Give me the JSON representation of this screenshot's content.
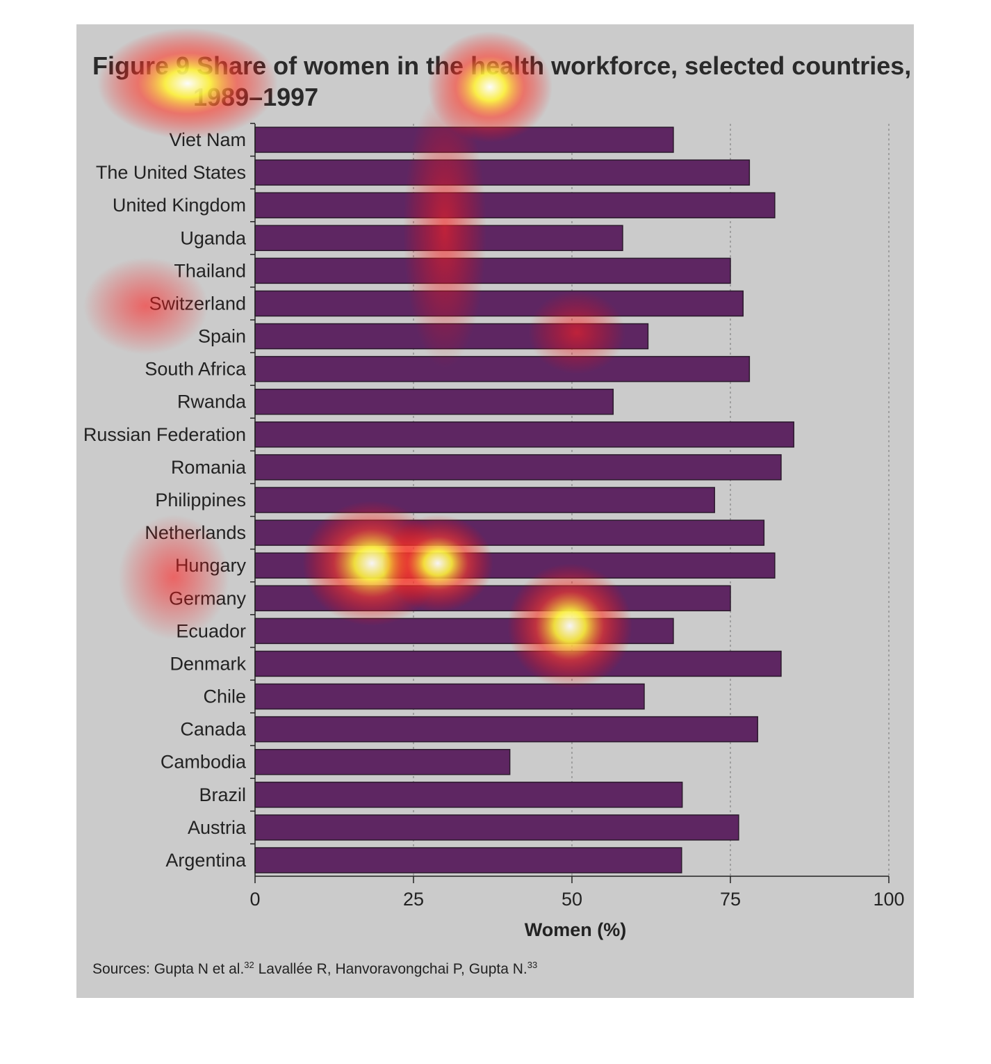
{
  "chart_data": {
    "type": "bar",
    "orientation": "horizontal",
    "title": "Figure 9  Share of women in the health workforce, selected countries,",
    "title_line2": "1989–1997",
    "categories": [
      "Viet Nam",
      "The United States",
      "United Kingdom",
      "Uganda",
      "Thailand",
      "Switzerland",
      "Spain",
      "South Africa",
      "Rwanda",
      "Russian Federation",
      "Romania",
      "Philippines",
      "Netherlands",
      "Hungary",
      "Germany",
      "Ecuador",
      "Denmark",
      "Chile",
      "Canada",
      "Cambodia",
      "Brazil",
      "Austria",
      "Argentina"
    ],
    "values": [
      66,
      78,
      82,
      58,
      75,
      77,
      62,
      78,
      56.5,
      85,
      83,
      72.5,
      80.3,
      82,
      75,
      66,
      83,
      61.4,
      79.3,
      40.2,
      67.4,
      76.3,
      67.3
    ],
    "xlabel": "Women (%)",
    "ylabel": "",
    "xlim": [
      0,
      100
    ],
    "xticks": [
      "0",
      "25",
      "50",
      "75",
      "100"
    ],
    "grid": "vertical dotted",
    "source": "Sources: Gupta N et al.",
    "source_sup1": "32",
    "source_rest": " Lavallée R, Hanvoravongchai P, Gupta N.",
    "source_sup2": "33",
    "colors": {
      "bar": "#5e2662",
      "bar_border": "#2b1a2c",
      "panel": "#cbcbcb"
    }
  }
}
